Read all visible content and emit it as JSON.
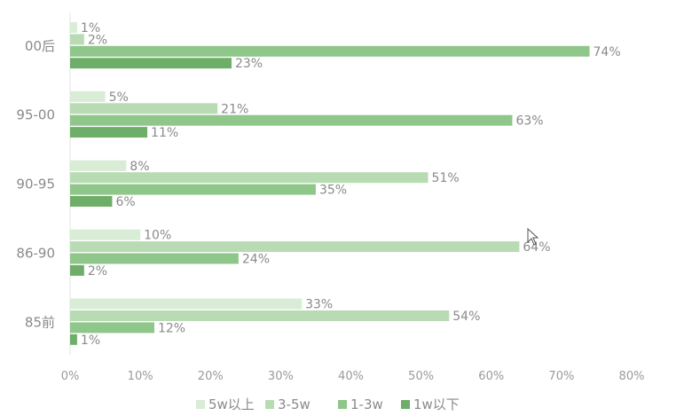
{
  "chart_data": {
    "type": "bar",
    "orientation": "horizontal",
    "categories": [
      "00后",
      "95-00",
      "90-95",
      "86-90",
      "85前"
    ],
    "series": [
      {
        "name": "5w以上",
        "color": "#d8ecd6",
        "values": [
          1,
          5,
          8,
          10,
          33
        ]
      },
      {
        "name": "3-5w",
        "color": "#b9dbb4",
        "values": [
          2,
          21,
          51,
          64,
          54
        ]
      },
      {
        "name": "1-3w",
        "color": "#8fc68a",
        "values": [
          74,
          63,
          35,
          24,
          12
        ]
      },
      {
        "name": "1w以下",
        "color": "#6fae69",
        "values": [
          23,
          11,
          6,
          2,
          1
        ]
      }
    ],
    "value_suffix": "%",
    "xlim": [
      0,
      80
    ],
    "xticks": [
      "0%",
      "10%",
      "20%",
      "30%",
      "40%",
      "50%",
      "60%",
      "70%",
      "80%"
    ],
    "grid": false,
    "legend_position": "bottom"
  },
  "cursor_icon": "mouse-pointer-icon"
}
